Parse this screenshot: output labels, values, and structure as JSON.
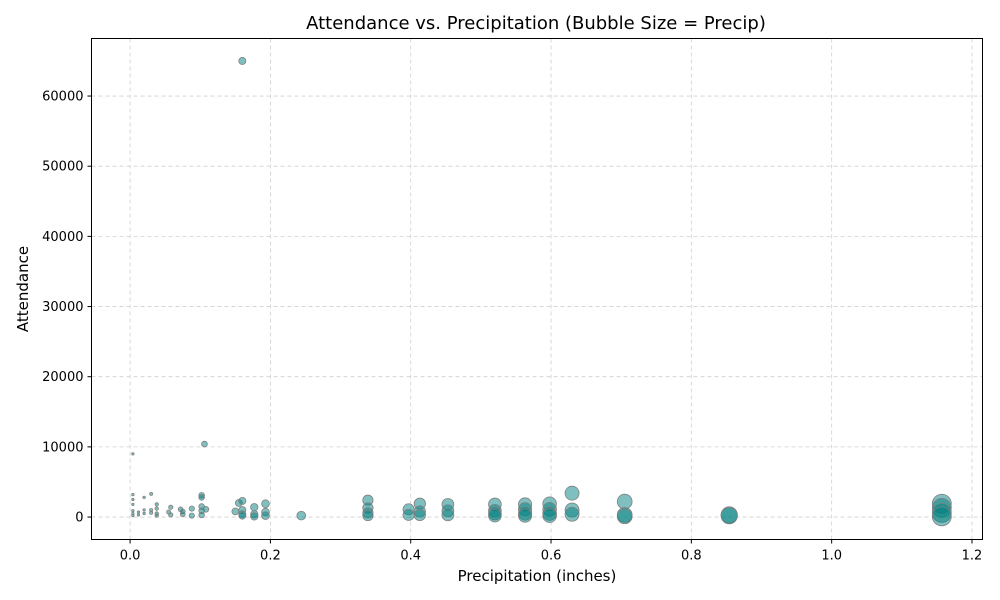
{
  "chart_data": {
    "type": "scatter",
    "title": "Attendance vs. Precipitation (Bubble Size = Precip)",
    "xlabel": "Precipitation (inches)",
    "ylabel": "Attendance",
    "xlim": [
      -0.055,
      1.215
    ],
    "ylim": [
      -3200,
      68200
    ],
    "xticks": [
      0.0,
      0.2,
      0.4,
      0.6,
      0.8,
      1.0,
      1.2
    ],
    "xtick_labels": [
      "0.0",
      "0.2",
      "0.4",
      "0.6",
      "0.8",
      "1.0",
      "1.2"
    ],
    "yticks": [
      0,
      10000,
      20000,
      30000,
      40000,
      50000,
      60000
    ],
    "ytick_labels": [
      "0",
      "10000",
      "20000",
      "30000",
      "40000",
      "50000",
      "60000"
    ],
    "grid": true,
    "bubble_size_encodes": "precipitation",
    "colors": {
      "bubble_fill": "#008080",
      "bubble_edge": "#808080",
      "grid": "#d0d0d0"
    },
    "points": [
      {
        "x": 0.004,
        "y": 9000
      },
      {
        "x": 0.004,
        "y": 3200
      },
      {
        "x": 0.004,
        "y": 2500
      },
      {
        "x": 0.004,
        "y": 1800
      },
      {
        "x": 0.004,
        "y": 900
      },
      {
        "x": 0.004,
        "y": 500
      },
      {
        "x": 0.004,
        "y": 200
      },
      {
        "x": 0.012,
        "y": 700
      },
      {
        "x": 0.012,
        "y": 300
      },
      {
        "x": 0.02,
        "y": 2800
      },
      {
        "x": 0.02,
        "y": 1000
      },
      {
        "x": 0.02,
        "y": 500
      },
      {
        "x": 0.03,
        "y": 3300
      },
      {
        "x": 0.03,
        "y": 1000
      },
      {
        "x": 0.03,
        "y": 600
      },
      {
        "x": 0.038,
        "y": 1800
      },
      {
        "x": 0.038,
        "y": 1200
      },
      {
        "x": 0.038,
        "y": 500
      },
      {
        "x": 0.038,
        "y": 200
      },
      {
        "x": 0.055,
        "y": 700
      },
      {
        "x": 0.058,
        "y": 1400
      },
      {
        "x": 0.058,
        "y": 300
      },
      {
        "x": 0.072,
        "y": 1100
      },
      {
        "x": 0.075,
        "y": 800
      },
      {
        "x": 0.075,
        "y": 400
      },
      {
        "x": 0.088,
        "y": 1200
      },
      {
        "x": 0.088,
        "y": 200
      },
      {
        "x": 0.102,
        "y": 3100
      },
      {
        "x": 0.102,
        "y": 2800
      },
      {
        "x": 0.102,
        "y": 1500
      },
      {
        "x": 0.102,
        "y": 900
      },
      {
        "x": 0.102,
        "y": 300
      },
      {
        "x": 0.106,
        "y": 10400
      },
      {
        "x": 0.108,
        "y": 1100
      },
      {
        "x": 0.15,
        "y": 800
      },
      {
        "x": 0.155,
        "y": 2000
      },
      {
        "x": 0.16,
        "y": 65000
      },
      {
        "x": 0.16,
        "y": 2300
      },
      {
        "x": 0.16,
        "y": 1000
      },
      {
        "x": 0.16,
        "y": 400
      },
      {
        "x": 0.16,
        "y": 200
      },
      {
        "x": 0.177,
        "y": 1400
      },
      {
        "x": 0.177,
        "y": 400
      },
      {
        "x": 0.177,
        "y": 100
      },
      {
        "x": 0.193,
        "y": 1900
      },
      {
        "x": 0.193,
        "y": 700
      },
      {
        "x": 0.193,
        "y": 200
      },
      {
        "x": 0.244,
        "y": 200
      },
      {
        "x": 0.339,
        "y": 2400
      },
      {
        "x": 0.339,
        "y": 1300
      },
      {
        "x": 0.339,
        "y": 600
      },
      {
        "x": 0.339,
        "y": 200
      },
      {
        "x": 0.397,
        "y": 1100
      },
      {
        "x": 0.397,
        "y": 300
      },
      {
        "x": 0.413,
        "y": 1900
      },
      {
        "x": 0.413,
        "y": 800
      },
      {
        "x": 0.413,
        "y": 300
      },
      {
        "x": 0.453,
        "y": 1800
      },
      {
        "x": 0.453,
        "y": 900
      },
      {
        "x": 0.453,
        "y": 300
      },
      {
        "x": 0.52,
        "y": 1800
      },
      {
        "x": 0.52,
        "y": 900
      },
      {
        "x": 0.52,
        "y": 500
      },
      {
        "x": 0.52,
        "y": 200
      },
      {
        "x": 0.563,
        "y": 1800
      },
      {
        "x": 0.563,
        "y": 1100
      },
      {
        "x": 0.563,
        "y": 500
      },
      {
        "x": 0.563,
        "y": 200
      },
      {
        "x": 0.598,
        "y": 1900
      },
      {
        "x": 0.598,
        "y": 1100
      },
      {
        "x": 0.598,
        "y": 500
      },
      {
        "x": 0.598,
        "y": 200
      },
      {
        "x": 0.63,
        "y": 3400
      },
      {
        "x": 0.63,
        "y": 1000
      },
      {
        "x": 0.63,
        "y": 400
      },
      {
        "x": 0.705,
        "y": 2200
      },
      {
        "x": 0.705,
        "y": 300
      },
      {
        "x": 0.705,
        "y": 100
      },
      {
        "x": 0.854,
        "y": 300
      },
      {
        "x": 0.854,
        "y": 200
      },
      {
        "x": 1.157,
        "y": 1900
      },
      {
        "x": 1.157,
        "y": 1300
      },
      {
        "x": 1.157,
        "y": 600
      },
      {
        "x": 1.157,
        "y": 100
      }
    ]
  }
}
